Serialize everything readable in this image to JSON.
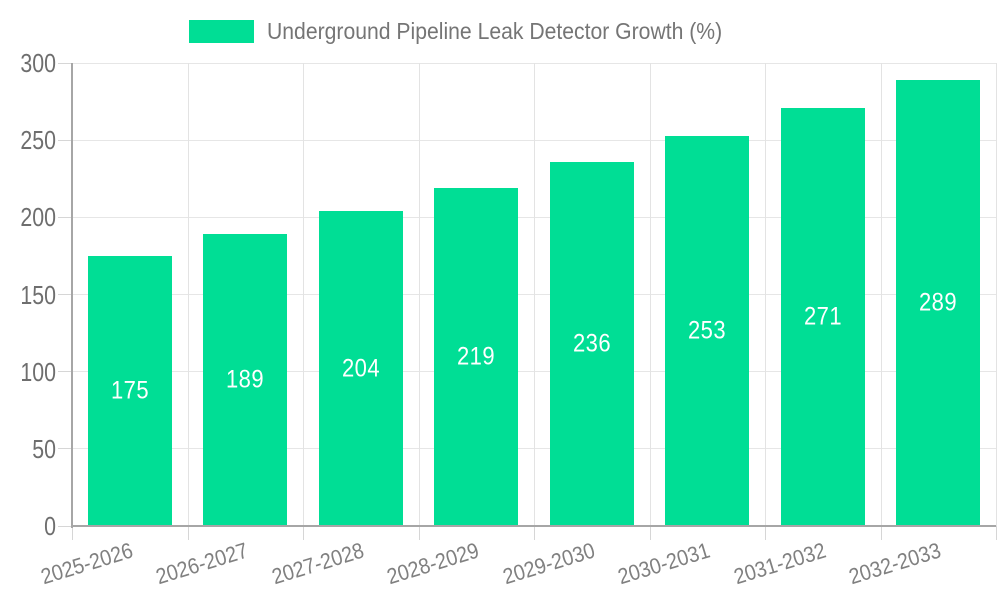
{
  "legend": {
    "items": [
      {
        "label": "Underground Pipeline Leak Detector Growth (%)",
        "color": "#00DE95"
      }
    ]
  },
  "chart_data": {
    "type": "bar",
    "title": "Underground Pipeline Leak Detector Growth (%)",
    "categories": [
      "2025-2026",
      "2026-2027",
      "2027-2028",
      "2028-2029",
      "2029-2030",
      "2030-2031",
      "2031-2032",
      "2032-2033"
    ],
    "series": [
      {
        "name": "Underground Pipeline Leak Detector Growth (%)",
        "values": [
          175,
          189,
          204,
          219,
          236,
          253,
          271,
          289
        ]
      }
    ],
    "data_labels": [
      "175",
      "189",
      "204",
      "219",
      "236",
      "253",
      "271",
      "289"
    ],
    "xlabel": "",
    "ylabel": "",
    "ylim": [
      0,
      300
    ],
    "yticks": [
      0,
      50,
      100,
      150,
      200,
      250,
      300
    ],
    "grid": true,
    "legend_position": "top",
    "x_label_rotation_deg": -17,
    "colors": {
      "bar": "#00DE95",
      "data_label": "#ffffff",
      "grid_h": "#e6e6e6",
      "grid_v": "#e3e3e3",
      "tick": "#d6d6d6",
      "axis": "#a6a6a6",
      "y_tick_label": "#6e6e6e",
      "x_tick_label": "#808080",
      "legend_text": "#757575",
      "background": "#ffffff"
    }
  }
}
